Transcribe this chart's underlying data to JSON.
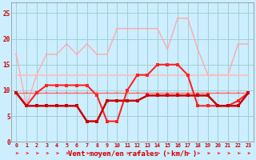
{
  "x": [
    0,
    1,
    2,
    3,
    4,
    5,
    6,
    7,
    8,
    9,
    10,
    11,
    12,
    13,
    14,
    15,
    16,
    17,
    18,
    19,
    20,
    21,
    22,
    23
  ],
  "line_rafales": [
    17,
    7,
    13,
    17,
    17,
    19,
    17,
    19,
    17,
    17,
    22,
    22,
    22,
    22,
    22,
    18,
    24,
    24,
    18,
    13,
    13,
    13,
    19,
    19
  ],
  "line_moy_upper": [
    13,
    13,
    13,
    13,
    13,
    13,
    13,
    13,
    13,
    13,
    13,
    13,
    13,
    13,
    13,
    13,
    13,
    13,
    13,
    13,
    13,
    13,
    13,
    13
  ],
  "line_wind1": [
    9.5,
    7,
    9.5,
    11,
    11,
    11,
    11,
    11,
    9,
    4,
    4,
    10,
    13,
    13,
    15,
    15,
    15,
    13,
    7,
    7,
    7,
    7,
    8,
    9.5
  ],
  "line_wind2": [
    9.5,
    7,
    7,
    7,
    7,
    7,
    7,
    4,
    4,
    8,
    8,
    8,
    8,
    9,
    9,
    9,
    9,
    9,
    9,
    9,
    7,
    7,
    7,
    9.5
  ],
  "line_mean": [
    9.5,
    9.5,
    9.5,
    9.5,
    9.5,
    9.5,
    9.5,
    9.5,
    9.5,
    9.5,
    9.5,
    9.5,
    9.5,
    9.5,
    9.5,
    9.5,
    9.5,
    9.5,
    9.5,
    9.5,
    9.5,
    9.5,
    9.5,
    9.5
  ],
  "bg_color": "#cceeff",
  "grid_color": "#99cccc",
  "line_rafales_color": "#ffaaaa",
  "line_moy_upper_color": "#ffbbbb",
  "line_wind1_color": "#ff2222",
  "line_wind2_color": "#cc0000",
  "line_mean_color": "#ff6666",
  "arrow_color": "#ff2222",
  "xlabel": "Vent moyen/en rafales ( km/h )",
  "ylim": [
    0,
    27
  ],
  "xlim": [
    -0.5,
    23.5
  ],
  "yticks": [
    0,
    5,
    10,
    15,
    20,
    25
  ],
  "xticks": [
    0,
    1,
    2,
    3,
    4,
    5,
    6,
    7,
    8,
    9,
    10,
    11,
    12,
    13,
    14,
    15,
    16,
    17,
    18,
    19,
    20,
    21,
    22,
    23
  ]
}
